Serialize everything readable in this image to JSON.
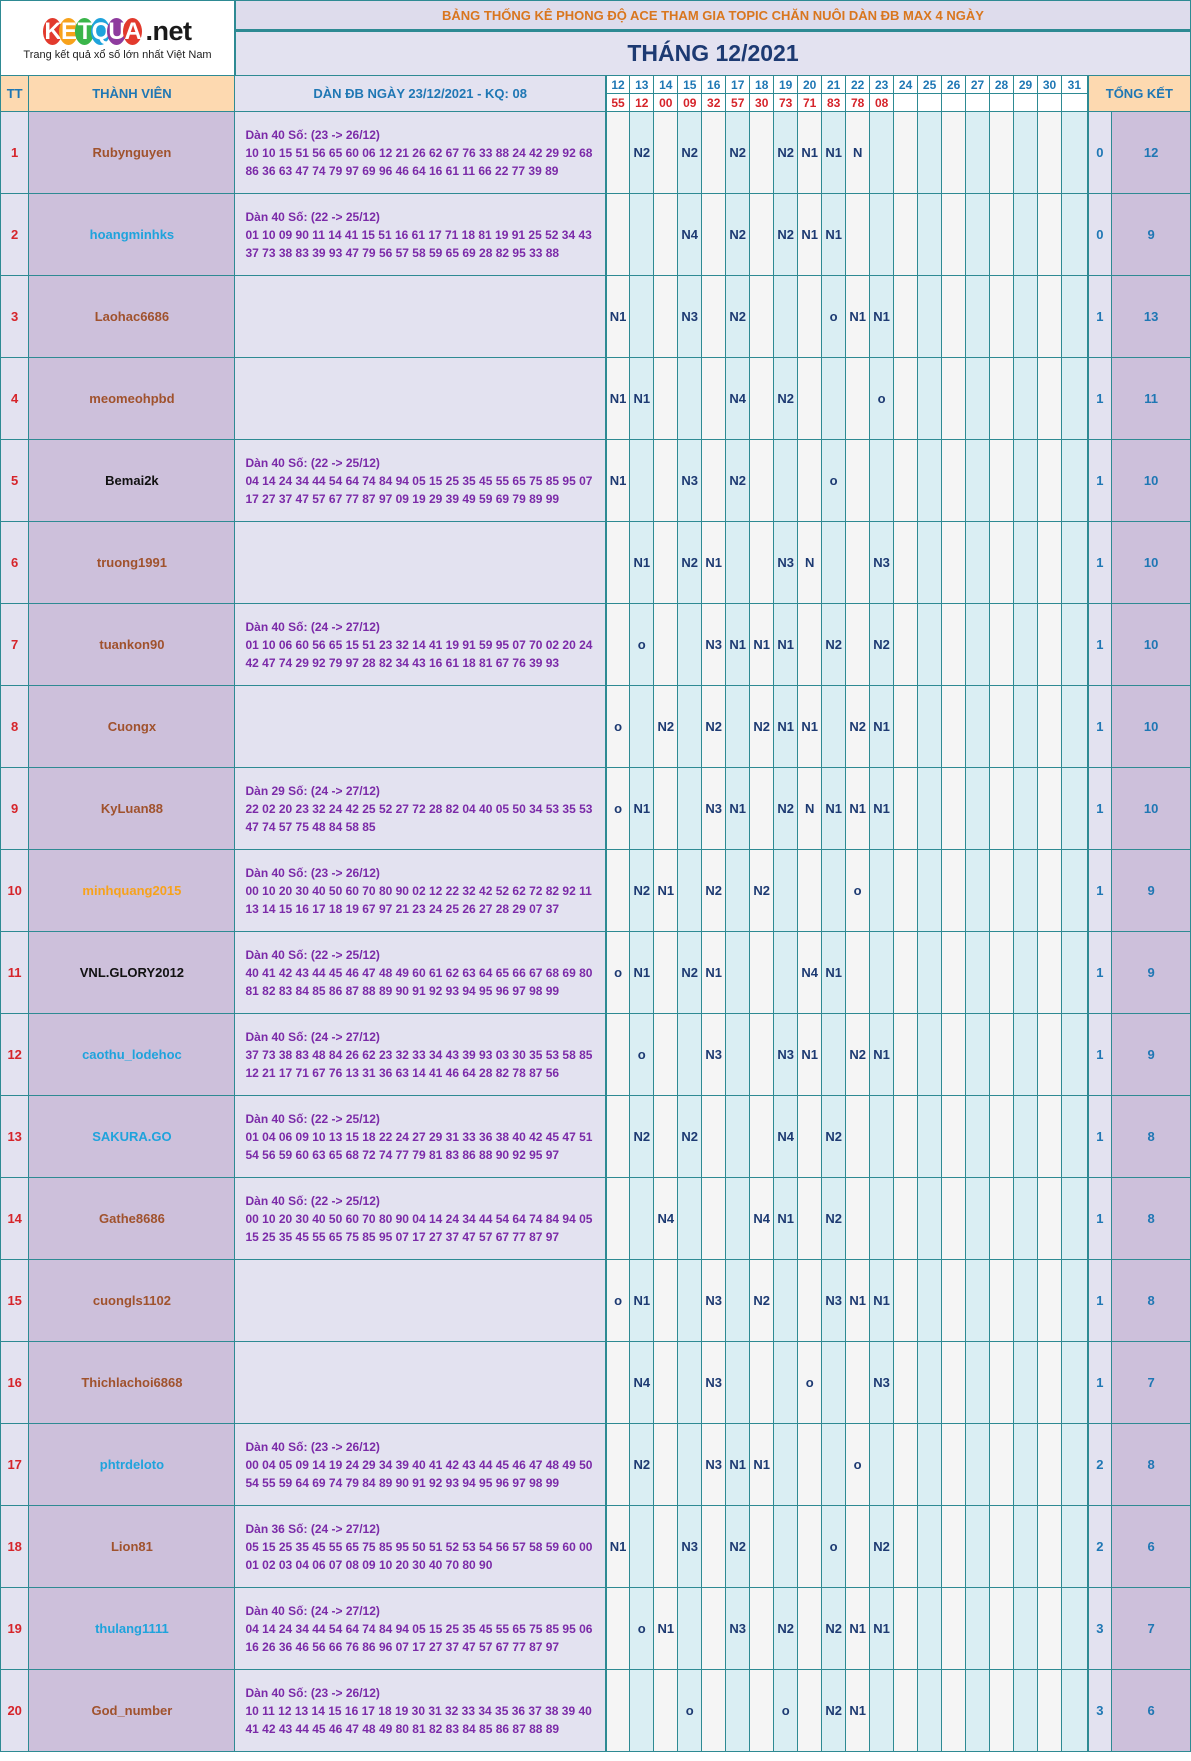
{
  "logo": {
    "brand": "KETQUA",
    "domain": ".net",
    "tagline": "Trang kết quả xổ số lớn nhất Việt Nam",
    "letter_colors": [
      "#e23a2d",
      "#f7a21b",
      "#3ab54a",
      "#1fa3dc",
      "#8e3b9e",
      "#e23a2d"
    ]
  },
  "header": {
    "subtitle": "BẢNG THỐNG KÊ PHONG ĐỘ ACE THAM GIA TOPIC CHĂN NUÔI DÀN ĐB MAX 4 NGÀY",
    "month_title": "THÁNG 12/2021"
  },
  "columns": {
    "tt": "TT",
    "member": "THÀNH VIÊN",
    "dan": "DÀN ĐB NGÀY 23/12/2021 - KQ: 08",
    "total": "TỔNG KẾT"
  },
  "days": [
    "12",
    "13",
    "14",
    "15",
    "16",
    "17",
    "18",
    "19",
    "20",
    "21",
    "22",
    "23",
    "24",
    "25",
    "26",
    "27",
    "28",
    "29",
    "30",
    "31"
  ],
  "results": [
    "55",
    "12",
    "00",
    "09",
    "32",
    "57",
    "30",
    "73",
    "71",
    "83",
    "78",
    "08",
    "",
    "",
    "",
    "",
    "",
    "",
    "",
    ""
  ],
  "rows": [
    {
      "tt": "1",
      "name": "Rubynguyen",
      "color": "#a0522d",
      "dan": [
        "Dàn 40 Số: (23 -> 26/12)",
        "10 10 15 51 56 65 60 06 12 21 26 62 67 76 33 88 24 42 29 92 68",
        "86 36 63 47 74 79 97 69 96 46 64 16 61 11 66 22 77 39 89"
      ],
      "cells": [
        "",
        "N2",
        "",
        "N2",
        "",
        "N2",
        "",
        "N2",
        "N1",
        "N1",
        "N",
        ""
      ],
      "t1": "0",
      "t2": "12"
    },
    {
      "tt": "2",
      "name": "hoangminhks",
      "color": "#1fa3dc",
      "dan": [
        "Dàn 40 Số: (22 -> 25/12)",
        "01 10 09 90 11 14 41 15 51 16 61 17 71 18 81 19 91 25 52 34 43",
        "37 73 38 83 39 93 47 79 56 57 58 59 65 69 28 82 95 33 88"
      ],
      "cells": [
        "",
        "",
        "",
        "N4",
        "",
        "N2",
        "",
        "N2",
        "N1",
        "N1",
        "",
        ""
      ],
      "t1": "0",
      "t2": "9"
    },
    {
      "tt": "3",
      "name": "Laohac6686",
      "color": "#a0522d",
      "dan": [],
      "cells": [
        "N1",
        "",
        "",
        "N3",
        "",
        "N2",
        "",
        "",
        "",
        "o",
        "N1",
        "N1"
      ],
      "t1": "1",
      "t2": "13"
    },
    {
      "tt": "4",
      "name": "meomeohpbd",
      "color": "#a0522d",
      "dan": [],
      "cells": [
        "N1",
        "N1",
        "",
        "",
        "",
        "N4",
        "",
        "N2",
        "",
        "",
        "",
        "o"
      ],
      "t1": "1",
      "t2": "11"
    },
    {
      "tt": "5",
      "name": "Bemai2k",
      "color": "#111111",
      "dan": [
        "Dàn 40 Số: (22 -> 25/12)",
        "04 14 24 34 44 54 64 74 84 94 05 15 25 35 45 55 65 75 85 95 07",
        "17 27 37 47 57 67 77 87 97 09 19 29 39 49 59 69 79 89 99"
      ],
      "cells": [
        "N1",
        "",
        "",
        "N3",
        "",
        "N2",
        "",
        "",
        "",
        "o",
        "",
        ""
      ],
      "t1": "1",
      "t2": "10"
    },
    {
      "tt": "6",
      "name": "truong1991",
      "color": "#a0522d",
      "dan": [],
      "cells": [
        "",
        "N1",
        "",
        "N2",
        "N1",
        "",
        "",
        "N3",
        "N",
        "",
        "",
        "N3"
      ],
      "t1": "1",
      "t2": "10"
    },
    {
      "tt": "7",
      "name": "tuankon90",
      "color": "#a0522d",
      "dan": [
        "Dàn 40 Số: (24 -> 27/12)",
        "01 10 06 60 56 65 15 51 23 32 14 41 19 91 59 95 07 70 02 20 24",
        "42 47 74 29 92 79 97 28 82 34 43 16 61 18 81 67 76 39 93"
      ],
      "cells": [
        "",
        "o",
        "",
        "",
        "N3",
        "N1",
        "N1",
        "N1",
        "",
        "N2",
        "",
        "N2"
      ],
      "t1": "1",
      "t2": "10"
    },
    {
      "tt": "8",
      "name": "Cuongx",
      "color": "#a0522d",
      "dan": [],
      "cells": [
        "o",
        "",
        "N2",
        "",
        "N2",
        "",
        "N2",
        "N1",
        "N1",
        "",
        "N2",
        "N1"
      ],
      "t1": "1",
      "t2": "10"
    },
    {
      "tt": "9",
      "name": "KyLuan88",
      "color": "#a0522d",
      "dan": [
        "Dàn 29 Số: (24 -> 27/12)",
        "22 02 20 23 32 24 42 25 52 27 72 28 82 04 40 05 50 34 53 35 53",
        "47 74 57 75 48 84 58 85"
      ],
      "cells": [
        "o",
        "N1",
        "",
        "",
        "N3",
        "N1",
        "",
        "N2",
        "N",
        "N1",
        "N1",
        "N1"
      ],
      "t1": "1",
      "t2": "10"
    },
    {
      "tt": "10",
      "name": "minhquang2015",
      "color": "#f7a21b",
      "dan": [
        "Dàn 40 Số: (23 -> 26/12)",
        "00 10 20 30 40 50 60 70 80 90 02 12 22 32 42 52 62 72 82 92 11",
        "13 14 15 16 17 18 19 67 97 21 23 24 25 26 27 28 29 07 37"
      ],
      "cells": [
        "",
        "N2",
        "N1",
        "",
        "N2",
        "",
        "N2",
        "",
        "",
        "",
        "o",
        ""
      ],
      "t1": "1",
      "t2": "9"
    },
    {
      "tt": "11",
      "name": "VNL.GLORY2012",
      "color": "#111111",
      "dan": [
        "Dàn 40 Số: (22 -> 25/12)",
        "40 41 42 43 44 45 46 47 48 49 60 61 62 63 64 65 66 67 68 69 80",
        "81 82 83 84 85 86 87 88 89 90 91 92 93 94 95 96 97 98 99"
      ],
      "cells": [
        "o",
        "N1",
        "",
        "N2",
        "N1",
        "",
        "",
        "",
        "N4",
        "N1",
        "",
        ""
      ],
      "t1": "1",
      "t2": "9"
    },
    {
      "tt": "12",
      "name": "caothu_lodehoc",
      "color": "#1fa3dc",
      "dan": [
        "Dàn 40 Số: (24 -> 27/12)",
        "37 73 38 83 48 84 26 62 23 32 33 34 43 39 93 03 30 35 53 58 85",
        "12 21 17 71 67 76 13 31 36 63 14 41 46 64 28 82 78 87 56"
      ],
      "cells": [
        "",
        "o",
        "",
        "",
        "N3",
        "",
        "",
        "N3",
        "N1",
        "",
        "N2",
        "N1"
      ],
      "t1": "1",
      "t2": "9"
    },
    {
      "tt": "13",
      "name": "SAKURA.GO",
      "color": "#1fa3dc",
      "dan": [
        "Dàn 40 Số: (22 -> 25/12)",
        "01 04 06 09 10 13 15 18 22 24 27 29 31 33 36 38 40 42 45 47 51",
        "54 56 59 60 63 65 68 72 74 77 79 81 83 86 88 90 92 95 97"
      ],
      "cells": [
        "",
        "N2",
        "",
        "N2",
        "",
        "",
        "",
        "N4",
        "",
        "N2",
        "",
        ""
      ],
      "t1": "1",
      "t2": "8"
    },
    {
      "tt": "14",
      "name": "Gathe8686",
      "color": "#a0522d",
      "dan": [
        "Dàn 40 Số: (22 -> 25/12)",
        "00 10 20 30 40 50 60 70 80 90 04 14 24 34 44 54 64 74 84 94 05",
        "15 25 35 45 55 65 75 85 95 07 17 27 37 47 57 67 77 87 97"
      ],
      "cells": [
        "",
        "",
        "N4",
        "",
        "",
        "",
        "N4",
        "N1",
        "",
        "N2",
        "",
        ""
      ],
      "t1": "1",
      "t2": "8"
    },
    {
      "tt": "15",
      "name": "cuongls1102",
      "color": "#a0522d",
      "dan": [],
      "cells": [
        "o",
        "N1",
        "",
        "",
        "N3",
        "",
        "N2",
        "",
        "",
        "N3",
        "N1",
        "N1"
      ],
      "t1": "1",
      "t2": "8"
    },
    {
      "tt": "16",
      "name": "Thichlachoi6868",
      "color": "#a0522d",
      "dan": [],
      "cells": [
        "",
        "N4",
        "",
        "",
        "N3",
        "",
        "",
        "",
        "o",
        "",
        "",
        "N3"
      ],
      "t1": "1",
      "t2": "7"
    },
    {
      "tt": "17",
      "name": "phtrdeloto",
      "color": "#1fa3dc",
      "dan": [
        "Dàn 40 Số: (23 -> 26/12)",
        "00 04 05 09 14 19 24 29 34 39 40 41 42 43 44 45 46 47 48 49 50",
        "54 55 59 64 69 74 79 84 89 90 91 92 93 94 95 96 97 98 99"
      ],
      "cells": [
        "",
        "N2",
        "",
        "",
        "N3",
        "N1",
        "N1",
        "",
        "",
        "",
        "o",
        ""
      ],
      "t1": "2",
      "t2": "8"
    },
    {
      "tt": "18",
      "name": "Lion81",
      "color": "#a0522d",
      "dan": [
        "Dàn 36 Số: (24 -> 27/12)",
        "05 15 25 35 45 55 65 75 85 95 50 51 52 53 54 56 57 58 59 60 00",
        "01 02 03 04 06 07 08 09 10 20 30 40 70 80 90"
      ],
      "cells": [
        "N1",
        "",
        "",
        "N3",
        "",
        "N2",
        "",
        "",
        "",
        "o",
        "",
        "N2"
      ],
      "t1": "2",
      "t2": "6"
    },
    {
      "tt": "19",
      "name": "thulang1111",
      "color": "#1fa3dc",
      "dan": [
        "Dàn 40 Số: (24 -> 27/12)",
        "04 14 24 34 44 54 64 74 84 94 05 15 25 35 45 55 65 75 85 95 06",
        "16 26 36 46 56 66 76 86 96 07 17 27 37 47 57 67 77 87 97"
      ],
      "cells": [
        "",
        "o",
        "N1",
        "",
        "",
        "N3",
        "",
        "N2",
        "",
        "N2",
        "N1",
        "N1"
      ],
      "t1": "3",
      "t2": "7"
    },
    {
      "tt": "20",
      "name": "God_number",
      "color": "#a0522d",
      "dan": [
        "Dàn 40 Số: (23 -> 26/12)",
        "10 11 12 13 14 15 16 17 18 19 30 31 32 33 34 35 36 37 38 39 40",
        "41 42 43 44 45 46 47 48 49 80 81 82 83 84 85 86 87 88 89"
      ],
      "cells": [
        "",
        "",
        "",
        "o",
        "",
        "",
        "",
        "o",
        "",
        "N2",
        "N1",
        ""
      ],
      "t1": "3",
      "t2": "6"
    }
  ]
}
